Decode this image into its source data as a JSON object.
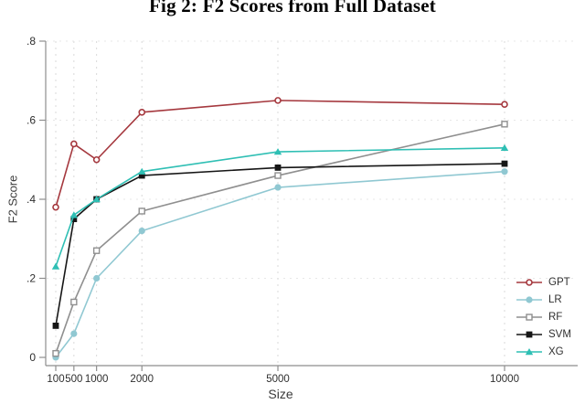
{
  "figure": {
    "title": "Fig 2: F2 Scores from Full Dataset",
    "xlabel": "Size",
    "ylabel": "F2 Score"
  },
  "chart_data": {
    "type": "line",
    "title": "Fig 2: F2 Scores from Full Dataset",
    "xlabel": "Size",
    "ylabel": "F2 Score",
    "x": [
      100,
      500,
      1000,
      2000,
      5000,
      10000
    ],
    "x_tick_labels": [
      "100",
      "500",
      "1000",
      "2000",
      "5000",
      "10000"
    ],
    "xlim": [
      100,
      10000
    ],
    "x_scale": "linear",
    "y_ticks": [
      0,
      0.2,
      0.4,
      0.6,
      0.8
    ],
    "y_tick_labels": [
      "0",
      ".2",
      ".4",
      ".6",
      ".8"
    ],
    "ylim": [
      0,
      0.8
    ],
    "grid": "dashed-light",
    "legend_position": "right-outside-lower",
    "series": [
      {
        "name": "GPT",
        "color": "#a5383e",
        "marker": "circle-open",
        "values": [
          0.38,
          0.54,
          0.5,
          0.62,
          0.65,
          0.64
        ]
      },
      {
        "name": "LR",
        "color": "#90c8d2",
        "marker": "circle-filled",
        "values": [
          0.0,
          0.06,
          0.2,
          0.32,
          0.43,
          0.47
        ]
      },
      {
        "name": "RF",
        "color": "#8f8f8f",
        "marker": "square-open",
        "values": [
          0.01,
          0.14,
          0.27,
          0.37,
          0.46,
          0.59
        ]
      },
      {
        "name": "SVM",
        "color": "#161616",
        "marker": "square-filled",
        "values": [
          0.08,
          0.35,
          0.4,
          0.46,
          0.48,
          0.49
        ]
      },
      {
        "name": "XG",
        "color": "#2fbfb4",
        "marker": "triangle-filled",
        "values": [
          0.23,
          0.36,
          0.4,
          0.47,
          0.52,
          0.53
        ]
      }
    ]
  }
}
